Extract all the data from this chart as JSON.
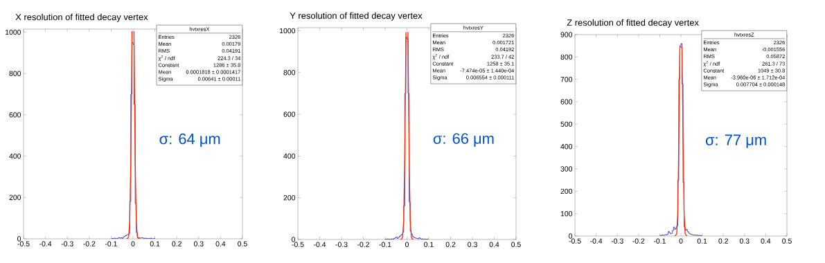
{
  "chart_data": [
    {
      "type": "histogram",
      "title": "X resolution of fitted decay vertex",
      "annotations": [
        "σ: 64 μm",
        "hvtxresX",
        "Entries",
        "2326",
        "Mean",
        "0.00179",
        "RMS",
        "0.04191",
        "χ$^{2}$ / ndf",
        "224.3 / 34",
        "Constant",
        "1286 ± 35.8",
        "Mean",
        "0.0001818 ± 0.0001417",
        "Sigma",
        "0.00641 ± 0.00011"
      ],
      "series": [
        {
          "type": "histogram",
          "color": "#2222aa",
          "bins": [
            -0.1,
            -0.095,
            -0.09,
            -0.085,
            -0.08,
            -0.075,
            -0.07,
            -0.065,
            -0.06,
            -0.055,
            -0.05,
            -0.045,
            -0.04,
            -0.035,
            -0.03,
            -0.025,
            -0.02,
            -0.015,
            -0.01,
            -0.005,
            0,
            0.005,
            0.01,
            0.015,
            0.02,
            0.025,
            0.03,
            0.035,
            0.04,
            0.045,
            0.05,
            0.055,
            0.06,
            0.065,
            0.07,
            0.075,
            0.08,
            0.085,
            0.09,
            0.095,
            0.1
          ],
          "values": [
            0,
            2,
            0,
            3,
            0,
            2,
            3,
            5,
            3,
            5,
            2,
            8,
            12,
            15,
            18,
            20,
            25,
            180,
            700,
            950,
            940,
            650,
            170,
            30,
            5,
            6,
            3,
            4,
            5,
            3,
            2,
            3,
            2,
            0,
            2,
            0,
            3,
            0,
            0,
            2
          ]
        },
        {
          "type": "line",
          "color": "#ff2a00",
          "x": [
            -0.03,
            -0.025,
            -0.02,
            -0.015,
            -0.01,
            -0.0075,
            -0.0045,
            0,
            0.0045,
            0.0075,
            0.01,
            0.015,
            0.02,
            0.025,
            0.03
          ],
          "values": [
            0,
            1,
            10,
            83,
            381,
            650,
            1005,
            null,
            1005,
            650,
            381,
            83,
            10,
            1,
            0
          ]
        }
      ],
      "xlim": [
        -0.5,
        0.5
      ],
      "ylim": [
        0,
        1015
      ],
      "xticks": [
        -0.5,
        -0.4,
        -0.3,
        -0.2,
        -0.1,
        0,
        0.1,
        0.2,
        0.3,
        0.4,
        0.5
      ],
      "yticks": [
        0,
        200,
        400,
        600,
        800,
        1000
      ]
    },
    {
      "type": "histogram",
      "title": "Y resolution of fitted decay vertex",
      "annotations": [
        "σ: 66 μm",
        "hvtxresY",
        "Entries",
        "2326",
        "Mean",
        "0.001721",
        "RMS",
        "0.04192",
        "χ$^{2}$ / ndf",
        "233.7 / 42",
        "Constant",
        "1258 ± 35.1",
        "Mean",
        "-7.474e-05 ± 1.440e-04",
        "Sigma",
        "0.006554 ± 0.000111"
      ],
      "series": [
        {
          "type": "histogram",
          "color": "#2222aa",
          "bins": [
            -0.1,
            -0.095,
            -0.09,
            -0.085,
            -0.08,
            -0.075,
            -0.07,
            -0.065,
            -0.06,
            -0.055,
            -0.05,
            -0.045,
            -0.04,
            -0.035,
            -0.03,
            -0.025,
            -0.02,
            -0.015,
            -0.01,
            -0.005,
            0,
            0.005,
            0.01,
            0.015,
            0.02,
            0.025,
            0.03,
            0.035,
            0.04,
            0.045,
            0.05,
            0.055,
            0.06,
            0.065,
            0.07,
            0.075,
            0.08,
            0.085,
            0.09,
            0.095,
            0.1
          ],
          "values": [
            2,
            0,
            3,
            0,
            2,
            0,
            3,
            2,
            5,
            8,
            12,
            5,
            10,
            15,
            20,
            25,
            35,
            160,
            700,
            970,
            960,
            700,
            180,
            40,
            25,
            15,
            10,
            8,
            6,
            5,
            3,
            8,
            4,
            2,
            3,
            0,
            2,
            0,
            2,
            0
          ]
        },
        {
          "type": "line",
          "color": "#ff2a00",
          "x": [
            -0.03,
            -0.025,
            -0.02,
            -0.015,
            -0.01,
            -0.0075,
            -0.0045,
            0,
            0.0045,
            0.0075,
            0.01,
            0.015,
            0.02,
            0.025,
            0.03
          ],
          "values": [
            0,
            1,
            12,
            92,
            393,
            653,
            994,
            null,
            994,
            653,
            393,
            92,
            12,
            1,
            0
          ]
        }
      ],
      "xlim": [
        -0.5,
        0.5
      ],
      "ylim": [
        0,
        1015
      ],
      "xticks": [
        -0.5,
        -0.4,
        -0.3,
        -0.2,
        -0.1,
        0,
        0.1,
        0.2,
        0.3,
        0.4,
        0.5
      ],
      "yticks": [
        0,
        200,
        400,
        600,
        800,
        1000
      ]
    },
    {
      "type": "histogram",
      "title": "Z resolution of fitted decay vertex",
      "annotations": [
        "σ: 77 μm",
        "hvtxresZ",
        "Entries",
        "2326",
        "Mean",
        "-0.001556",
        "RMS",
        "0.05872",
        "χ$^{2}$ / ndf",
        "261.3 / 73",
        "Constant",
        "1049 ± 30.8",
        "Mean",
        "-3.960e-06 ± 1.712e-04",
        "Sigma",
        "0.007704 ± 0.000148"
      ],
      "series": [
        {
          "type": "histogram",
          "color": "#2222aa",
          "bins": [
            -0.1,
            -0.095,
            -0.09,
            -0.085,
            -0.08,
            -0.075,
            -0.07,
            -0.065,
            -0.06,
            -0.055,
            -0.05,
            -0.045,
            -0.04,
            -0.035,
            -0.03,
            -0.025,
            -0.02,
            -0.015,
            -0.01,
            -0.005,
            0,
            0.005,
            0.01,
            0.015,
            0.02,
            0.025,
            0.03,
            0.035,
            0.04,
            0.045,
            0.05,
            0.055,
            0.06,
            0.065,
            0.07,
            0.075,
            0.08,
            0.085,
            0.09,
            0.095,
            0.1
          ],
          "values": [
            3,
            2,
            5,
            3,
            4,
            6,
            5,
            8,
            20,
            15,
            10,
            12,
            25,
            40,
            30,
            35,
            45,
            250,
            700,
            850,
            860,
            680,
            240,
            40,
            25,
            30,
            20,
            15,
            10,
            8,
            6,
            5,
            4,
            5,
            3,
            4,
            2,
            3,
            2,
            2
          ]
        },
        {
          "type": "line",
          "color": "#ff2a00",
          "x": [
            -0.03,
            -0.025,
            -0.02,
            -0.015,
            -0.01,
            -0.0075,
            -0.005,
            0,
            0.005,
            0.0075,
            0.01,
            0.015,
            0.02,
            0.025,
            0.03
          ],
          "values": [
            0,
            3,
            10,
            100,
            430,
            650,
            845,
            845,
            845,
            650,
            430,
            100,
            10,
            3,
            0
          ]
        }
      ],
      "xlim": [
        -0.5,
        0.5
      ],
      "ylim": [
        0,
        900
      ],
      "xticks": [
        -0.5,
        -0.4,
        -0.3,
        -0.2,
        -0.1,
        0,
        0.1,
        0.2,
        0.3,
        0.4,
        0.5
      ],
      "yticks": [
        0,
        100,
        200,
        300,
        400,
        500,
        600,
        700,
        800,
        900
      ]
    }
  ]
}
